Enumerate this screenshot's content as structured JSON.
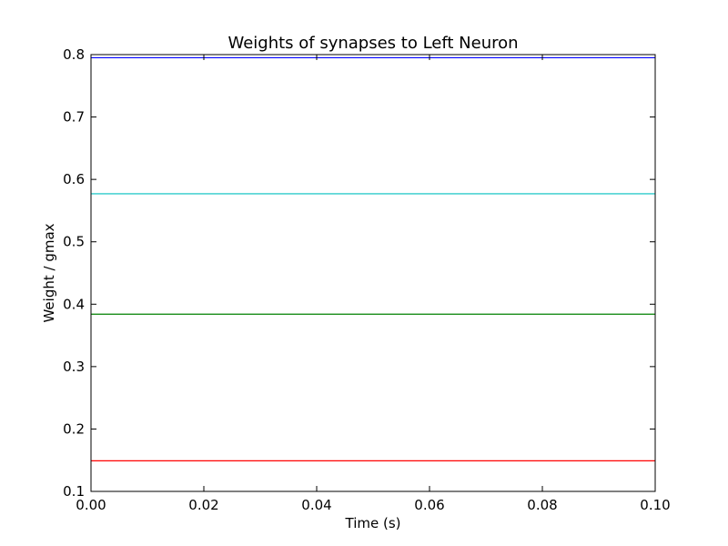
{
  "chart_data": {
    "type": "line",
    "title": "Weights of synapses to Left Neuron",
    "xlabel": "Time (s)",
    "ylabel": "Weight / gmax",
    "xlim": [
      0.0,
      0.1
    ],
    "ylim": [
      0.1,
      0.8
    ],
    "xticks": [
      "0.00",
      "0.02",
      "0.04",
      "0.06",
      "0.08",
      "0.10"
    ],
    "yticks": [
      "0.1",
      "0.2",
      "0.3",
      "0.4",
      "0.5",
      "0.6",
      "0.7",
      "0.8"
    ],
    "grid": false,
    "x": [
      0.0,
      0.1
    ],
    "series": [
      {
        "values": [
          0.795,
          0.795
        ],
        "color": "#0000ff"
      },
      {
        "values": [
          0.577,
          0.577
        ],
        "color": "#00bfbf"
      },
      {
        "values": [
          0.384,
          0.384
        ],
        "color": "#008000"
      },
      {
        "values": [
          0.149,
          0.149
        ],
        "color": "#ff0000"
      }
    ]
  }
}
